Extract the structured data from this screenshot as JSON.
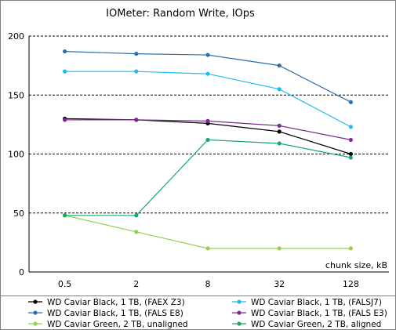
{
  "chart_data": {
    "type": "line",
    "title": "IOMeter: Random Write, IOps",
    "xlabel": "chunk size, kB",
    "ylabel": "",
    "x": [
      "0.5",
      "2",
      "8",
      "32",
      "128"
    ],
    "ylim": [
      0,
      200
    ],
    "yticks": [
      0,
      50,
      100,
      150,
      200
    ],
    "grid": "horizontal-dashed",
    "legend_position": "bottom",
    "series": [
      {
        "name": "WD Caviar Black, 1 TB, (FAEX Z3)",
        "color": "#000000",
        "values": [
          130,
          129,
          126,
          119,
          100
        ]
      },
      {
        "name": "WD Caviar Black, 1 TB, (FALSJ7)",
        "color": "#1ebdf0",
        "values": [
          170,
          170,
          168,
          155,
          123
        ]
      },
      {
        "name": "WD Caviar Black, 1 TB, (FALS E8)",
        "color": "#2e6fa8",
        "values": [
          187,
          185,
          184,
          175,
          144
        ]
      },
      {
        "name": "WD Caviar Black, 1 TB, (FALS E3)",
        "color": "#7b2d8e",
        "values": [
          129,
          129,
          128,
          124,
          112
        ]
      },
      {
        "name": "WD Caviar Green, 2 TB, unaligned",
        "color": "#92d050",
        "values": [
          48,
          34,
          20,
          20,
          20
        ]
      },
      {
        "name": "WD Caviar Green, 2 TB, aligned",
        "color": "#1aa86b",
        "values": [
          48,
          48,
          112,
          109,
          97
        ]
      }
    ]
  }
}
